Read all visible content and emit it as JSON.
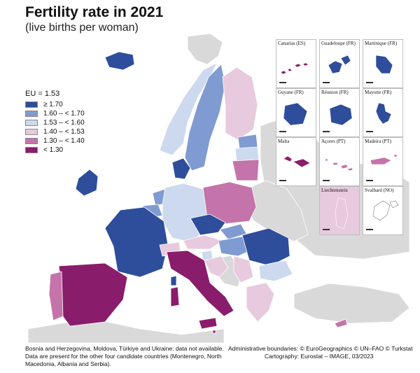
{
  "title": "Fertility rate in 2021",
  "subtitle": "(live births per woman)",
  "legend": {
    "title": "EU = 1.53",
    "classes": [
      {
        "label": "≥ 1.70",
        "color": "#2e4d9b"
      },
      {
        "label": "1.60 – < 1.70",
        "color": "#7f9bd1"
      },
      {
        "label": "1.53 – < 1.60",
        "color": "#cdd9ee"
      },
      {
        "label": "1.40 – < 1.53",
        "color": "#e7cadd"
      },
      {
        "label": "1.30 – < 1.40",
        "color": "#c474aa"
      },
      {
        "label": "< 1.30",
        "color": "#8a1c6c"
      }
    ]
  },
  "colors": {
    "sea": "#ffffff",
    "non_reporting": "#d9d9d9",
    "border": "#ffffff",
    "inset_border": "#bdbdbd"
  },
  "insets": [
    {
      "label": "Canarias (ES)",
      "color": "#8a1c6c",
      "icon": "canary-islands-shape"
    },
    {
      "label": "Guadeloupe (FR)",
      "color": "#2e4d9b",
      "icon": "guadeloupe-shape"
    },
    {
      "label": "Martinique (FR)",
      "color": "#2e4d9b",
      "icon": "martinique-shape"
    },
    {
      "label": "Guyane (FR)",
      "color": "#2e4d9b",
      "icon": "guyane-shape"
    },
    {
      "label": "Réunion (FR)",
      "color": "#2e4d9b",
      "icon": "reunion-shape"
    },
    {
      "label": "Mayotte (FR)",
      "color": "#2e4d9b",
      "icon": "mayotte-shape"
    },
    {
      "label": "Malta",
      "color": "#8a1c6c",
      "icon": "malta-shape"
    },
    {
      "label": "Açores (PT)",
      "color": "#c474aa",
      "icon": "azores-shape"
    },
    {
      "label": "Madeira (PT)",
      "color": "#c474aa",
      "icon": "madeira-shape"
    },
    {
      "label": "Liechtenstein",
      "color": "#e7cadd",
      "icon": "liechtenstein-shape"
    },
    {
      "label": "Svalbard (NO)",
      "color": "#ffffff",
      "icon": "svalbard-shape"
    }
  ],
  "footnote": "Bosnia and Herzegovina, Moldova, Türkiye and Ukraine: data not available. Data are present for the other four candidate countries (Montenegro, North Macedonia, Albania and Serbia).",
  "credits": {
    "boundaries": "Administrative boundaries: © EuroGeographics © UN–FAO © Turkstat",
    "cartography": "Cartography: Eurostat – IMAGE, 03/2023"
  }
}
